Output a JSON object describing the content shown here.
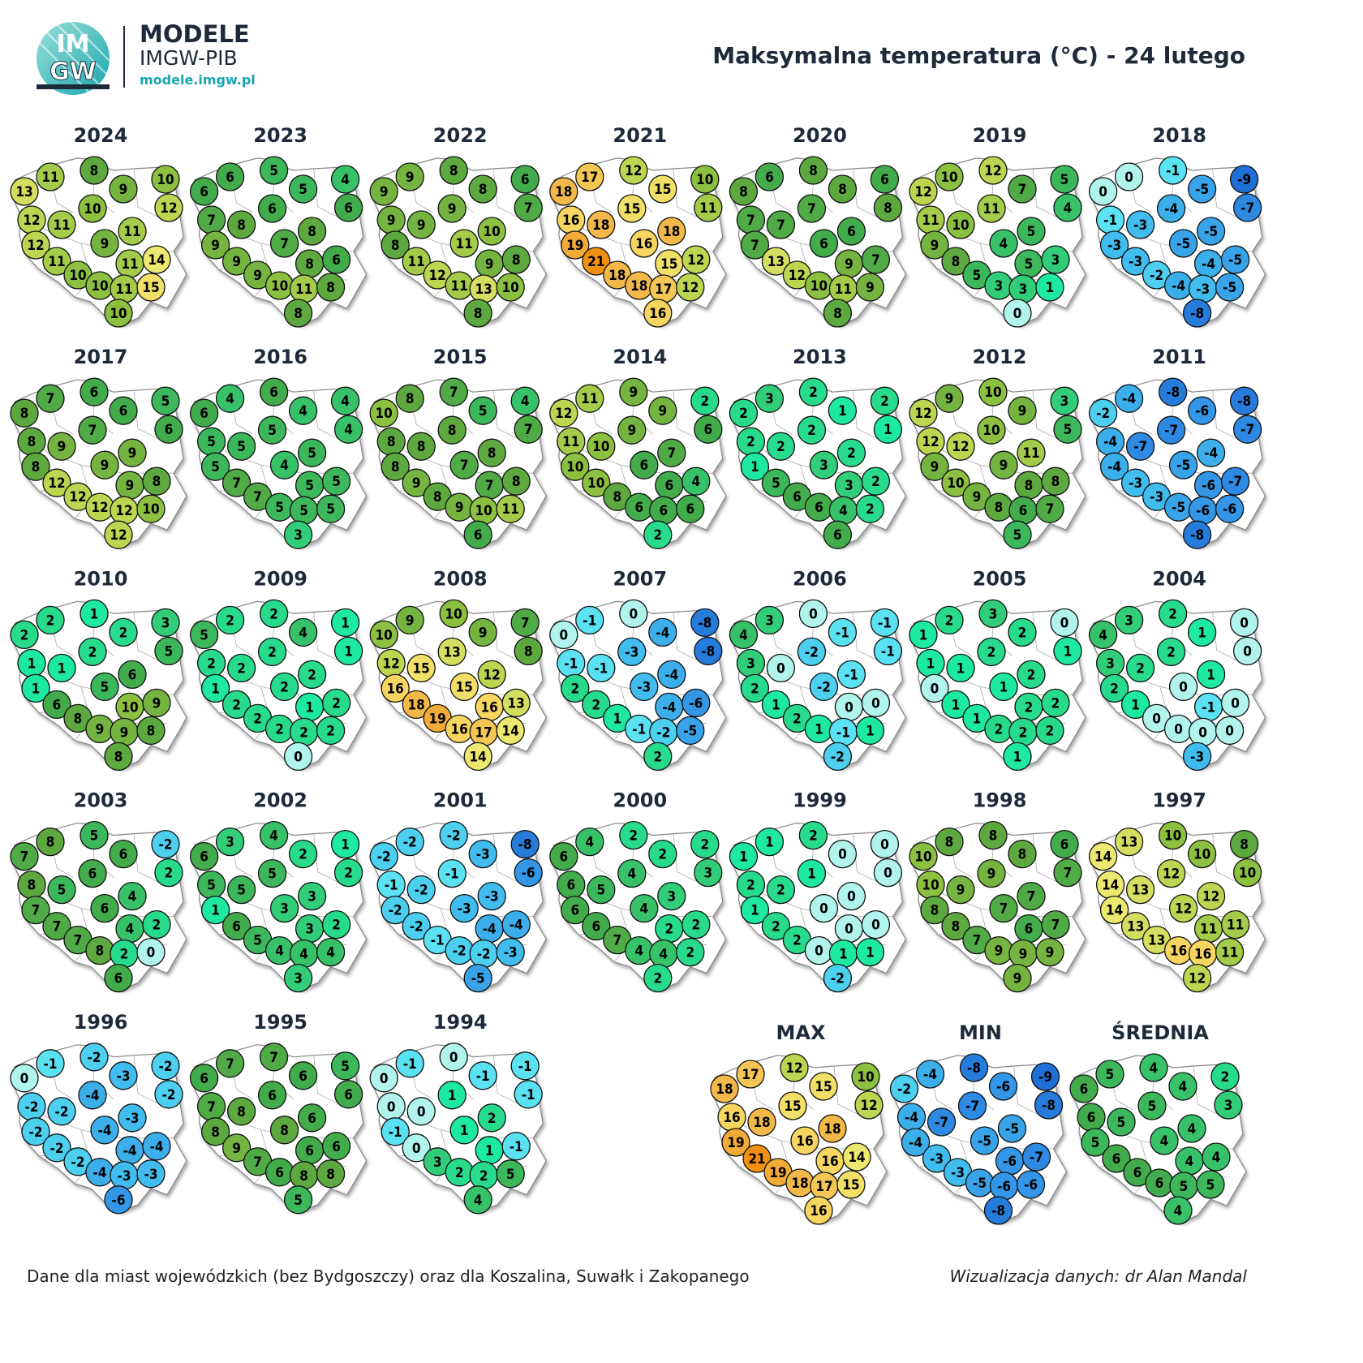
{
  "header": {
    "logo_top": "IM",
    "logo_bottom": "GW",
    "brand": "MODELE",
    "brand_sub": "IMGW-PIB",
    "url": "modele.imgw.pl",
    "title": "Maksymalna temperatura (°C) - 24 lutego"
  },
  "maps": [
    {
      "label": "2024",
      "values": [
        13,
        11,
        8,
        9,
        10,
        12,
        12,
        11,
        10,
        12,
        9,
        11,
        11,
        11,
        14,
        10,
        10,
        11,
        15,
        10
      ]
    },
    {
      "label": "2023",
      "values": [
        6,
        6,
        5,
        5,
        4,
        6,
        7,
        8,
        6,
        9,
        7,
        8,
        9,
        8,
        6,
        9,
        10,
        11,
        8,
        8
      ]
    },
    {
      "label": "2022",
      "values": [
        9,
        9,
        8,
        8,
        6,
        7,
        9,
        9,
        9,
        8,
        11,
        10,
        11,
        9,
        8,
        12,
        11,
        13,
        10,
        8
      ]
    },
    {
      "label": "2021",
      "values": [
        18,
        17,
        12,
        15,
        10,
        11,
        16,
        18,
        15,
        19,
        16,
        18,
        21,
        15,
        12,
        18,
        18,
        17,
        12,
        16
      ]
    },
    {
      "label": "2020",
      "values": [
        8,
        6,
        8,
        8,
        6,
        8,
        7,
        7,
        7,
        7,
        6,
        6,
        13,
        9,
        7,
        12,
        10,
        11,
        9,
        8
      ]
    },
    {
      "label": "2019",
      "values": [
        12,
        10,
        12,
        7,
        5,
        4,
        11,
        10,
        11,
        9,
        4,
        5,
        8,
        5,
        3,
        5,
        3,
        3,
        1,
        0
      ]
    },
    {
      "label": "2018",
      "values": [
        0,
        0,
        -1,
        -5,
        -9,
        -7,
        -1,
        -3,
        -4,
        -3,
        -5,
        -5,
        -3,
        -4,
        -5,
        -2,
        -4,
        -3,
        -5,
        -8
      ]
    },
    {
      "label": "2017",
      "values": [
        8,
        7,
        6,
        6,
        5,
        6,
        8,
        9,
        7,
        8,
        9,
        9,
        12,
        9,
        8,
        12,
        12,
        12,
        10,
        12
      ]
    },
    {
      "label": "2016",
      "values": [
        6,
        4,
        6,
        4,
        4,
        4,
        5,
        5,
        5,
        5,
        4,
        5,
        7,
        5,
        5,
        7,
        5,
        5,
        5,
        3
      ]
    },
    {
      "label": "2015",
      "values": [
        10,
        8,
        7,
        5,
        4,
        7,
        8,
        8,
        8,
        8,
        7,
        8,
        9,
        7,
        8,
        8,
        9,
        10,
        11,
        6
      ]
    },
    {
      "label": "2014",
      "values": [
        12,
        11,
        9,
        9,
        2,
        6,
        11,
        10,
        9,
        10,
        6,
        7,
        10,
        6,
        4,
        8,
        6,
        6,
        6,
        2
      ]
    },
    {
      "label": "2013",
      "values": [
        2,
        3,
        2,
        1,
        2,
        1,
        2,
        2,
        2,
        1,
        3,
        2,
        5,
        3,
        2,
        6,
        6,
        4,
        2,
        6
      ]
    },
    {
      "label": "2012",
      "values": [
        12,
        9,
        10,
        9,
        3,
        5,
        12,
        12,
        10,
        9,
        9,
        11,
        10,
        8,
        8,
        9,
        8,
        6,
        7,
        5
      ]
    },
    {
      "label": "2011",
      "values": [
        -2,
        -4,
        -8,
        -6,
        -8,
        -7,
        -4,
        -7,
        -7,
        -4,
        -5,
        -4,
        -3,
        -6,
        -7,
        -3,
        -5,
        -6,
        -6,
        -8
      ]
    },
    {
      "label": "2010",
      "values": [
        2,
        2,
        1,
        2,
        3,
        5,
        1,
        1,
        2,
        1,
        5,
        6,
        6,
        10,
        9,
        8,
        9,
        9,
        8,
        8
      ]
    },
    {
      "label": "2009",
      "values": [
        5,
        2,
        2,
        4,
        1,
        1,
        2,
        2,
        2,
        1,
        2,
        2,
        2,
        1,
        2,
        2,
        2,
        2,
        2,
        0
      ]
    },
    {
      "label": "2008",
      "values": [
        10,
        9,
        10,
        9,
        7,
        8,
        12,
        15,
        13,
        16,
        15,
        12,
        18,
        16,
        13,
        19,
        16,
        17,
        14,
        14
      ]
    },
    {
      "label": "2007",
      "values": [
        0,
        -1,
        0,
        -4,
        -8,
        -8,
        -1,
        -1,
        -3,
        2,
        -3,
        -4,
        2,
        -4,
        -6,
        1,
        -1,
        -2,
        -5,
        2
      ]
    },
    {
      "label": "2006",
      "values": [
        4,
        3,
        0,
        -1,
        -1,
        -1,
        3,
        0,
        -2,
        2,
        -2,
        -1,
        1,
        0,
        0,
        2,
        1,
        -1,
        1,
        -2
      ]
    },
    {
      "label": "2005",
      "values": [
        1,
        2,
        3,
        2,
        0,
        1,
        1,
        1,
        2,
        0,
        1,
        2,
        1,
        2,
        2,
        1,
        2,
        2,
        2,
        1
      ]
    },
    {
      "label": "2004",
      "values": [
        4,
        3,
        2,
        1,
        0,
        0,
        3,
        2,
        2,
        2,
        0,
        1,
        1,
        -1,
        0,
        0,
        0,
        0,
        0,
        -3
      ]
    },
    {
      "label": "2003",
      "values": [
        7,
        8,
        5,
        6,
        -2,
        2,
        8,
        5,
        6,
        7,
        6,
        4,
        7,
        4,
        2,
        7,
        8,
        2,
        0,
        6
      ]
    },
    {
      "label": "2002",
      "values": [
        6,
        3,
        4,
        2,
        1,
        2,
        5,
        5,
        5,
        1,
        3,
        3,
        6,
        3,
        2,
        5,
        4,
        4,
        4,
        3
      ]
    },
    {
      "label": "2001",
      "values": [
        -2,
        -2,
        -2,
        -3,
        -8,
        -6,
        -1,
        -2,
        -1,
        -2,
        -3,
        -3,
        -2,
        -4,
        -4,
        -1,
        -2,
        -2,
        -3,
        -5
      ]
    },
    {
      "label": "2000",
      "values": [
        6,
        4,
        2,
        2,
        2,
        3,
        6,
        5,
        4,
        6,
        4,
        3,
        6,
        2,
        2,
        7,
        4,
        4,
        2,
        2
      ]
    },
    {
      "label": "1999",
      "values": [
        1,
        1,
        2,
        0,
        0,
        0,
        2,
        2,
        1,
        1,
        0,
        0,
        2,
        0,
        0,
        2,
        0,
        1,
        1,
        -2
      ]
    },
    {
      "label": "1998",
      "values": [
        10,
        8,
        8,
        8,
        6,
        7,
        10,
        9,
        9,
        8,
        7,
        7,
        8,
        6,
        7,
        7,
        9,
        9,
        9,
        9
      ]
    },
    {
      "label": "1997",
      "values": [
        14,
        13,
        10,
        10,
        8,
        10,
        14,
        13,
        12,
        14,
        12,
        12,
        13,
        11,
        11,
        13,
        16,
        16,
        11,
        12
      ]
    },
    {
      "label": "1996",
      "values": [
        0,
        -1,
        -2,
        -3,
        -2,
        -2,
        -2,
        -2,
        -4,
        -2,
        -4,
        -3,
        -2,
        -4,
        -4,
        -2,
        -4,
        -3,
        -3,
        -6
      ]
    },
    {
      "label": "1995",
      "values": [
        6,
        7,
        7,
        6,
        5,
        6,
        7,
        8,
        6,
        8,
        8,
        6,
        9,
        6,
        6,
        7,
        6,
        8,
        8,
        5
      ]
    },
    {
      "label": "1994",
      "values": [
        0,
        -1,
        0,
        -1,
        -1,
        -1,
        0,
        0,
        1,
        -1,
        1,
        2,
        0,
        1,
        -1,
        3,
        2,
        2,
        5,
        4
      ]
    },
    {
      "label": "MAX",
      "values": [
        18,
        17,
        12,
        15,
        10,
        12,
        16,
        18,
        15,
        19,
        16,
        18,
        21,
        16,
        14,
        19,
        18,
        17,
        15,
        16
      ]
    },
    {
      "label": "MIN",
      "values": [
        -2,
        -4,
        -8,
        -6,
        -9,
        -8,
        -4,
        -7,
        -7,
        -4,
        -5,
        -5,
        -3,
        -6,
        -7,
        -3,
        -5,
        -6,
        -6,
        -8
      ]
    },
    {
      "label": "ŚREDNIA",
      "values": [
        6,
        5,
        4,
        4,
        2,
        3,
        6,
        5,
        5,
        5,
        4,
        4,
        6,
        4,
        4,
        6,
        6,
        5,
        5,
        4
      ]
    }
  ],
  "footer": {
    "note": "Dane dla miast wojewódzkich (bez Bydgoszczy) oraz dla Koszalina, Suwałk i Zakopanego",
    "credit": "Wizualizacja danych: dr Alan Mandal"
  }
}
